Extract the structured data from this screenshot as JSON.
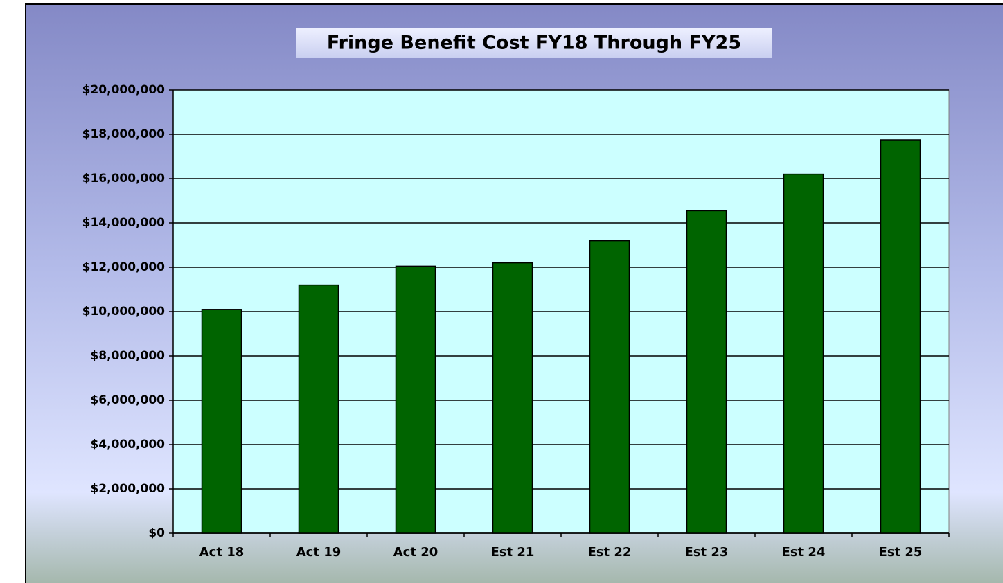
{
  "chart_data": {
    "type": "bar",
    "title": "Fringe Benefit Cost FY18 Through FY25",
    "categories": [
      "Act 18",
      "Act 19",
      "Act 20",
      "Est 21",
      "Est 22",
      "Est 23",
      "Est 24",
      "Est 25"
    ],
    "values": [
      10100000,
      11200000,
      12050000,
      12200000,
      13200000,
      14550000,
      16200000,
      17750000
    ],
    "color": "#006400",
    "ylim": [
      0,
      20000000
    ],
    "yticks": [
      {
        "value": 0,
        "label": "$0"
      },
      {
        "value": 2000000,
        "label": "$2,000,000"
      },
      {
        "value": 4000000,
        "label": "$4,000,000"
      },
      {
        "value": 6000000,
        "label": "$6,000,000"
      },
      {
        "value": 8000000,
        "label": "$8,000,000"
      },
      {
        "value": 10000000,
        "label": "$10,000,000"
      },
      {
        "value": 12000000,
        "label": "$12,000,000"
      },
      {
        "value": 14000000,
        "label": "$14,000,000"
      },
      {
        "value": 16000000,
        "label": "$16,000,000"
      },
      {
        "value": 18000000,
        "label": "$18,000,000"
      },
      {
        "value": 20000000,
        "label": "$20,000,000"
      }
    ],
    "grid": true
  }
}
